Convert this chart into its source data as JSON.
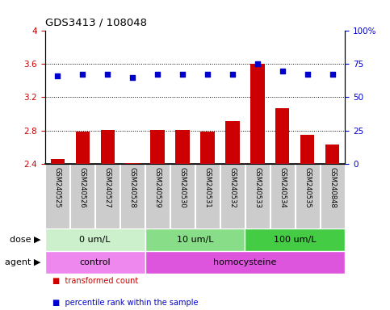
{
  "title": "GDS3413 / 108048",
  "samples": [
    "GSM240525",
    "GSM240526",
    "GSM240527",
    "GSM240528",
    "GSM240529",
    "GSM240530",
    "GSM240531",
    "GSM240532",
    "GSM240533",
    "GSM240534",
    "GSM240535",
    "GSM240848"
  ],
  "transformed_count": [
    2.46,
    2.79,
    2.81,
    2.41,
    2.81,
    2.81,
    2.79,
    2.91,
    3.6,
    3.07,
    2.75,
    2.63
  ],
  "percentile_rank": [
    66,
    67,
    67,
    65,
    67,
    67,
    67,
    67,
    75,
    70,
    67,
    67
  ],
  "ylim_left": [
    2.4,
    4.0
  ],
  "ylim_right": [
    0,
    100
  ],
  "yticks_left": [
    2.4,
    2.8,
    3.2,
    3.6,
    4.0
  ],
  "yticks_right": [
    0,
    25,
    50,
    75,
    100
  ],
  "ytick_labels_left": [
    "2.4",
    "2.8",
    "3.2",
    "3.6",
    "4"
  ],
  "ytick_labels_right": [
    "0",
    "25",
    "50",
    "75",
    "100%"
  ],
  "hlines": [
    2.8,
    3.2,
    3.6
  ],
  "bar_color": "#cc0000",
  "scatter_color": "#0000cc",
  "dose_groups": [
    {
      "label": "0 um/L",
      "start": 0,
      "end": 4,
      "color": "#ccf0cc"
    },
    {
      "label": "10 um/L",
      "start": 4,
      "end": 8,
      "color": "#88dd88"
    },
    {
      "label": "100 um/L",
      "start": 8,
      "end": 12,
      "color": "#44cc44"
    }
  ],
  "agent_groups": [
    {
      "label": "control",
      "start": 0,
      "end": 4,
      "color": "#ee88ee"
    },
    {
      "label": "homocysteine",
      "start": 4,
      "end": 12,
      "color": "#dd55dd"
    }
  ],
  "dose_label": "dose",
  "agent_label": "agent",
  "legend_items": [
    {
      "color": "#cc0000",
      "label": "transformed count"
    },
    {
      "color": "#0000cc",
      "label": "percentile rank within the sample"
    }
  ],
  "plot_bg": "#ffffff",
  "sample_box_bg": "#cccccc",
  "left_axis_color": "#cc0000",
  "right_axis_color": "#0000cc"
}
